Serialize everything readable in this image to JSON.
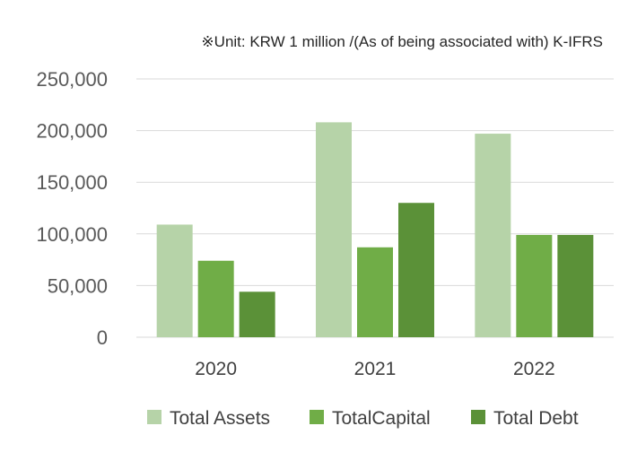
{
  "chart_data": {
    "type": "bar",
    "note": "※Unit: KRW 1 million /(As of being associated with) K-IFRS",
    "categories": [
      "2020",
      "2021",
      "2022"
    ],
    "series": [
      {
        "name": "Total Assets",
        "values": [
          109000,
          208000,
          197000
        ],
        "color": "#b6d3a8"
      },
      {
        "name": "TotalCapital",
        "values": [
          74000,
          87000,
          99000
        ],
        "color": "#70ad47"
      },
      {
        "name": "Total Debt",
        "values": [
          44000,
          130000,
          99000
        ],
        "color": "#5b9138"
      }
    ],
    "ylim": [
      0,
      250000
    ],
    "yticks": [
      {
        "value": 0,
        "label": "0"
      },
      {
        "value": 50000,
        "label": "50,000"
      },
      {
        "value": 100000,
        "label": "100,000"
      },
      {
        "value": 150000,
        "label": "150,000"
      },
      {
        "value": 200000,
        "label": "200,000"
      },
      {
        "value": 250000,
        "label": "250,000"
      }
    ],
    "grid": true,
    "legend_position": "bottom",
    "gridline_color": "#d9d9d9"
  }
}
